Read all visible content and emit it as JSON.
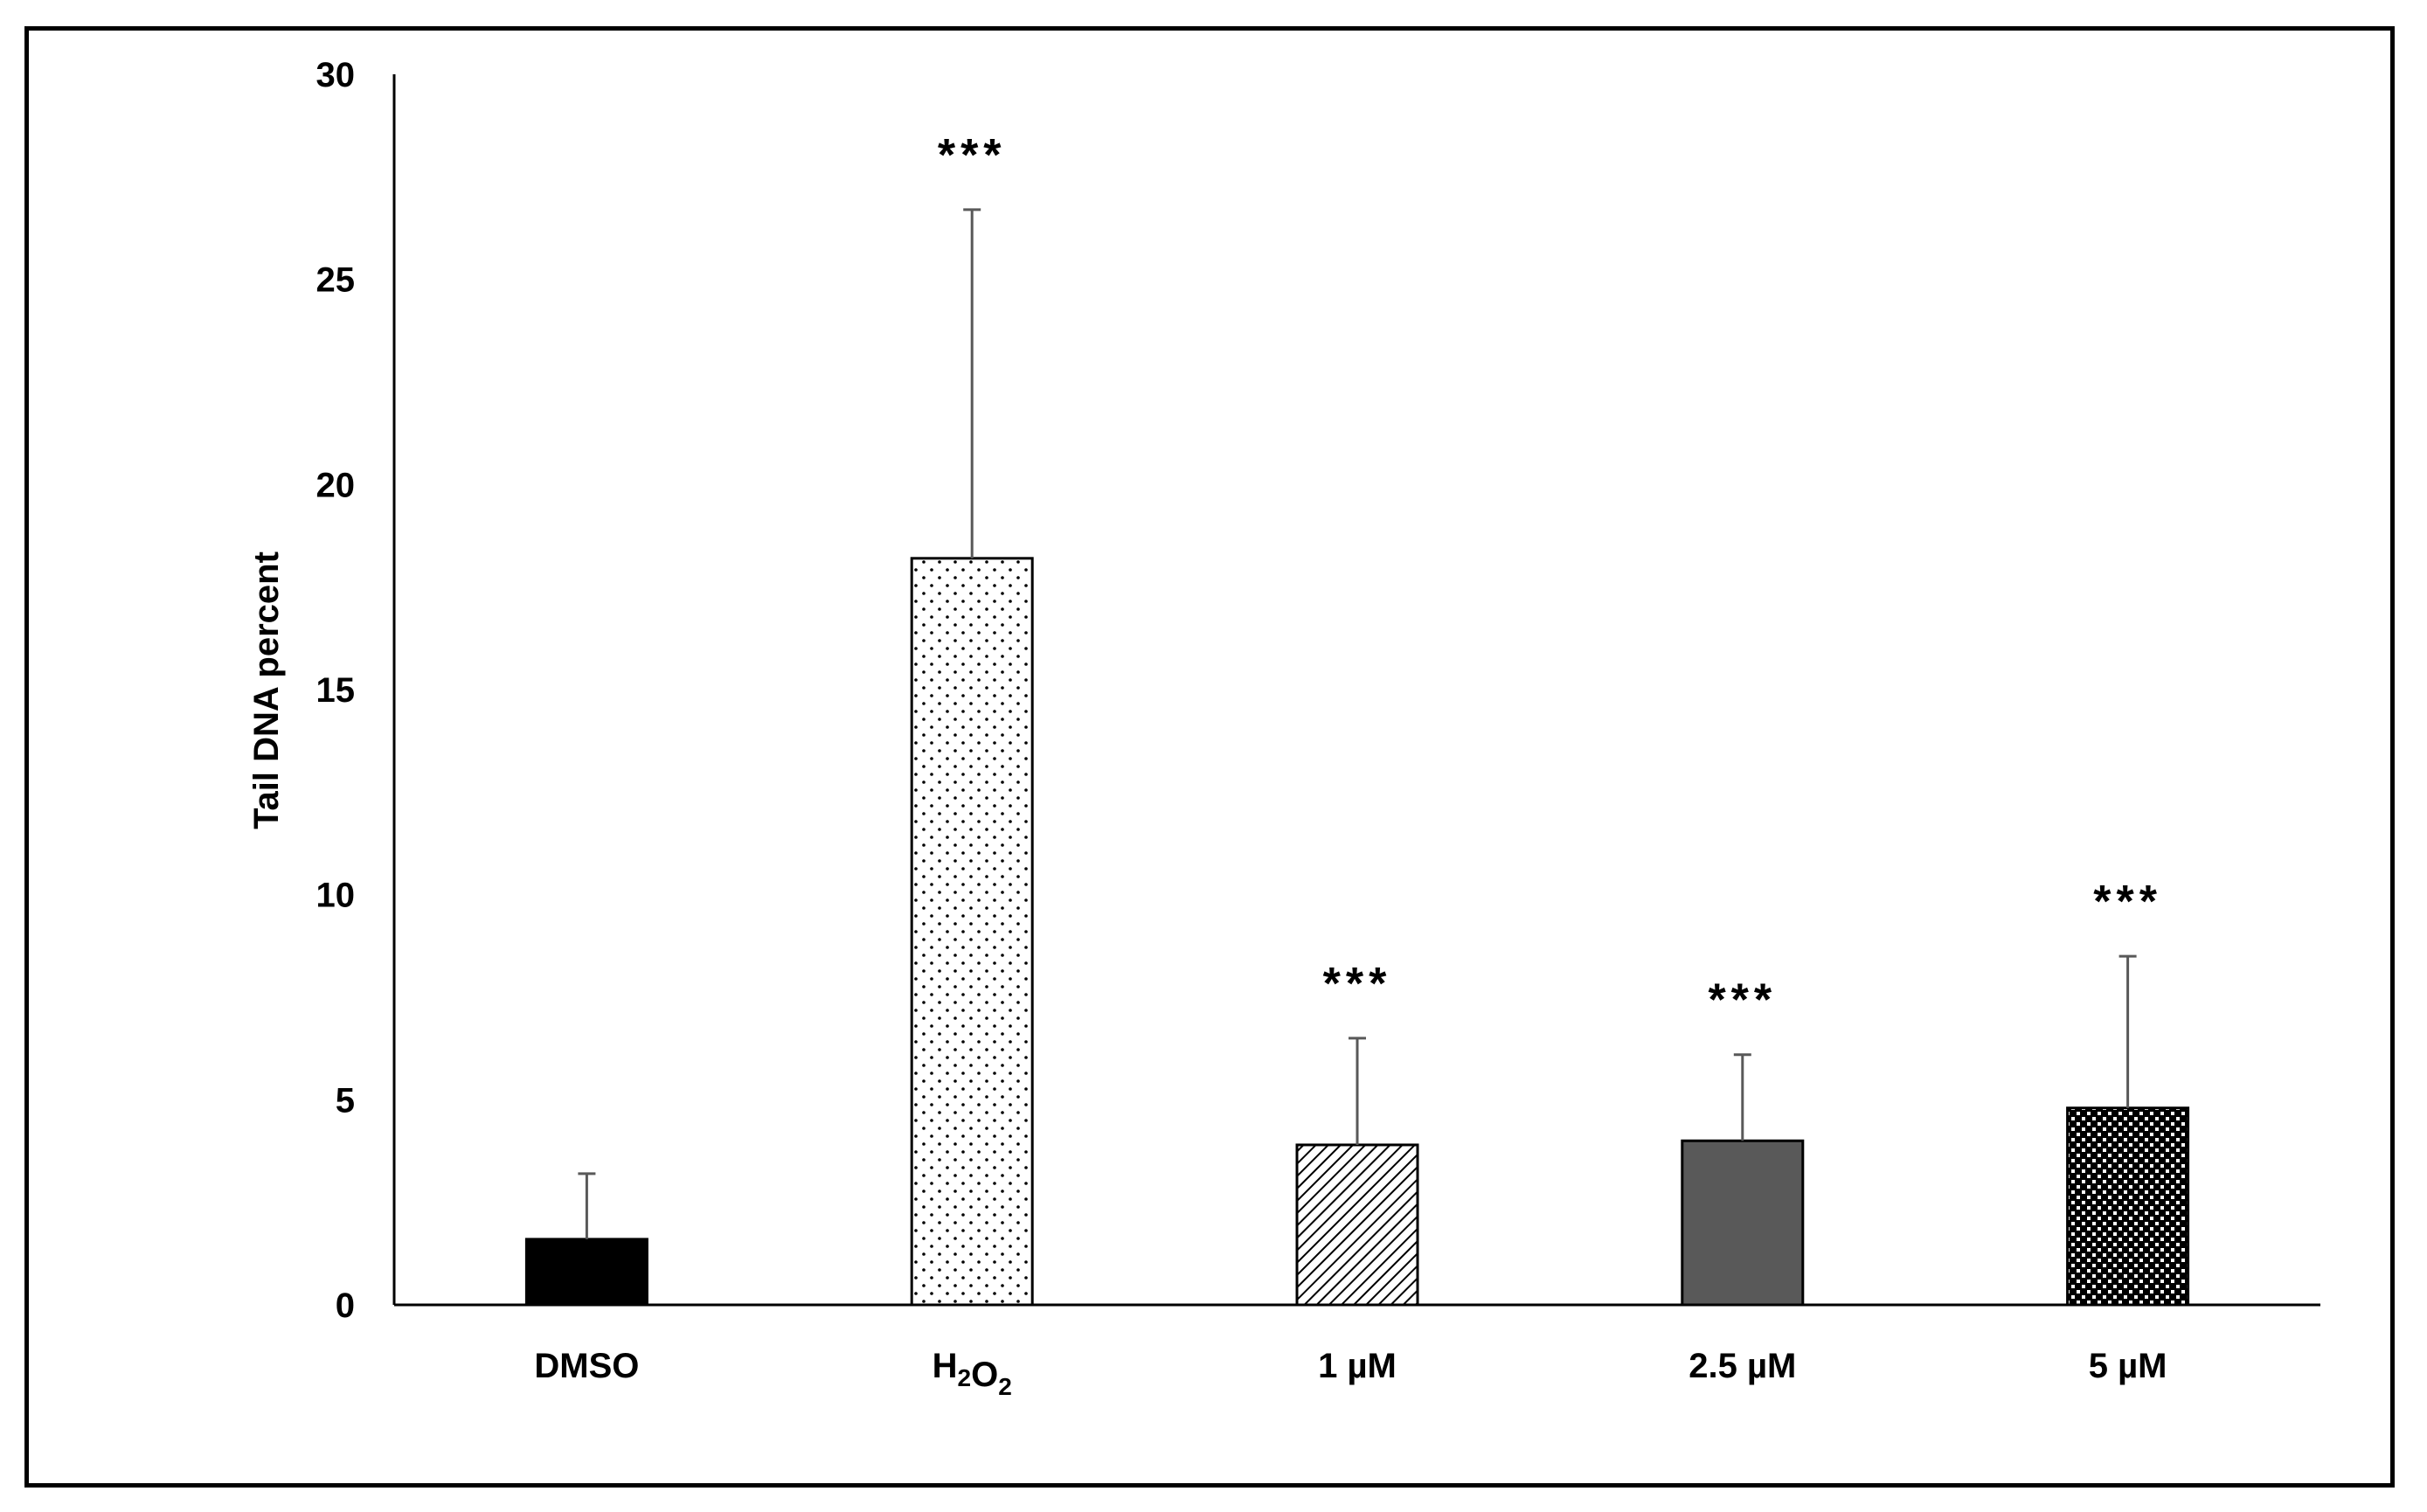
{
  "chart_data": {
    "type": "bar",
    "title": "",
    "xlabel": "",
    "ylabel": "Tail DNA percent",
    "ylim": [
      0,
      30
    ],
    "yticks": [
      0,
      5,
      10,
      15,
      20,
      25,
      30
    ],
    "grid": false,
    "categories": [
      {
        "label": "DMSO",
        "sub": ""
      },
      {
        "label": "H2O2",
        "sub": "2"
      },
      {
        "label": "1 µM",
        "sub": ""
      },
      {
        "label": "2.5 µM",
        "sub": ""
      },
      {
        "label": "5 µM",
        "sub": ""
      }
    ],
    "values": [
      1.6,
      18.2,
      3.9,
      4.0,
      4.8
    ],
    "errors": [
      1.6,
      8.5,
      2.6,
      2.1,
      3.7
    ],
    "significance": [
      "",
      "***",
      "***",
      "***",
      "***"
    ],
    "fills": [
      {
        "style": "solid",
        "color": "#000000"
      },
      {
        "style": "dots",
        "color": "#ffffff"
      },
      {
        "style": "hatch",
        "color": "#ffffff"
      },
      {
        "style": "solid",
        "color": "#595959"
      },
      {
        "style": "check",
        "color": "#000000"
      }
    ]
  }
}
